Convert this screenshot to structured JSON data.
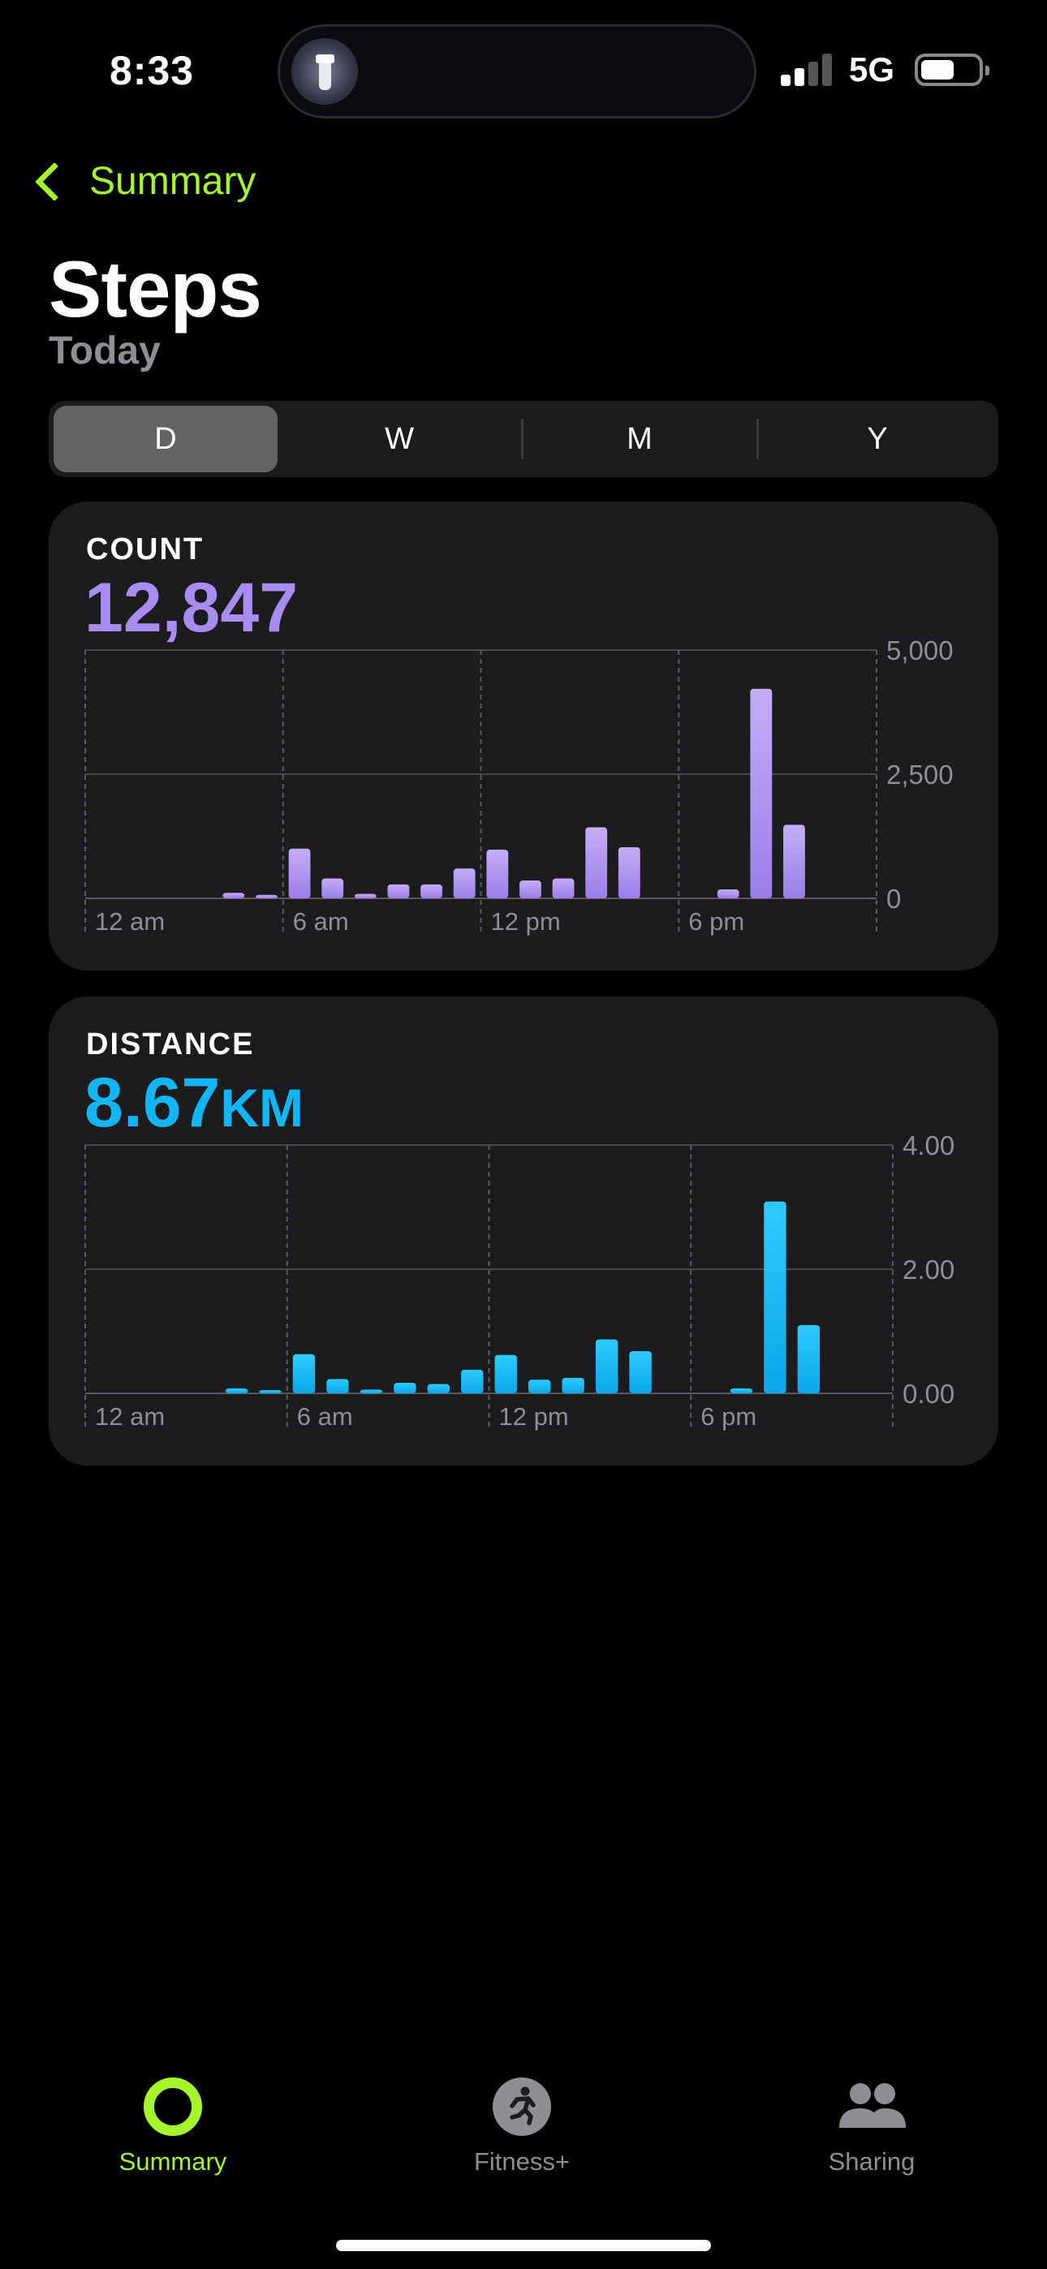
{
  "status": {
    "time": "8:33",
    "network": "5G"
  },
  "nav": {
    "back_label": "Summary"
  },
  "header": {
    "title": "Steps",
    "subtitle": "Today"
  },
  "segments": [
    "D",
    "W",
    "M",
    "Y"
  ],
  "cards": {
    "count": {
      "label": "COUNT",
      "value": "12,847"
    },
    "distance": {
      "label": "DISTANCE",
      "value": "8.67",
      "unit": "KM"
    }
  },
  "tabs": [
    "Summary",
    "Fitness+",
    "Sharing"
  ],
  "colors": {
    "accent": "#a4f52c",
    "steps": "#a88df0",
    "distance": "#12b6f5"
  },
  "chart_data": [
    {
      "type": "bar",
      "x_tick_labels": [
        "12 am",
        "6 am",
        "12 pm",
        "6 pm"
      ],
      "y_tick_labels": [
        "5,000",
        "2,500",
        "0"
      ],
      "ylim": [
        0,
        5000
      ],
      "hours": [
        4,
        5,
        6,
        7,
        8,
        9,
        10,
        11,
        12,
        13,
        14,
        15,
        16,
        17,
        18,
        19,
        20,
        21,
        22,
        23
      ],
      "values": [
        110,
        70,
        1000,
        400,
        90,
        280,
        280,
        600,
        980,
        360,
        400,
        1430,
        1030,
        0,
        0,
        180,
        4220,
        1480,
        0,
        0
      ]
    },
    {
      "type": "bar",
      "x_tick_labels": [
        "12 am",
        "6 am",
        "12 pm",
        "6 pm"
      ],
      "y_tick_labels": [
        "4.00",
        "2.00",
        "0.00"
      ],
      "ylim": [
        0,
        4
      ],
      "hours": [
        4,
        5,
        6,
        7,
        8,
        9,
        10,
        11,
        12,
        13,
        14,
        15,
        16,
        17,
        18,
        19,
        20,
        21,
        22,
        23
      ],
      "values": [
        0.08,
        0.05,
        0.63,
        0.23,
        0.06,
        0.17,
        0.15,
        0.38,
        0.62,
        0.22,
        0.25,
        0.87,
        0.68,
        0,
        0,
        0.08,
        3.09,
        1.1,
        0,
        0
      ]
    }
  ]
}
